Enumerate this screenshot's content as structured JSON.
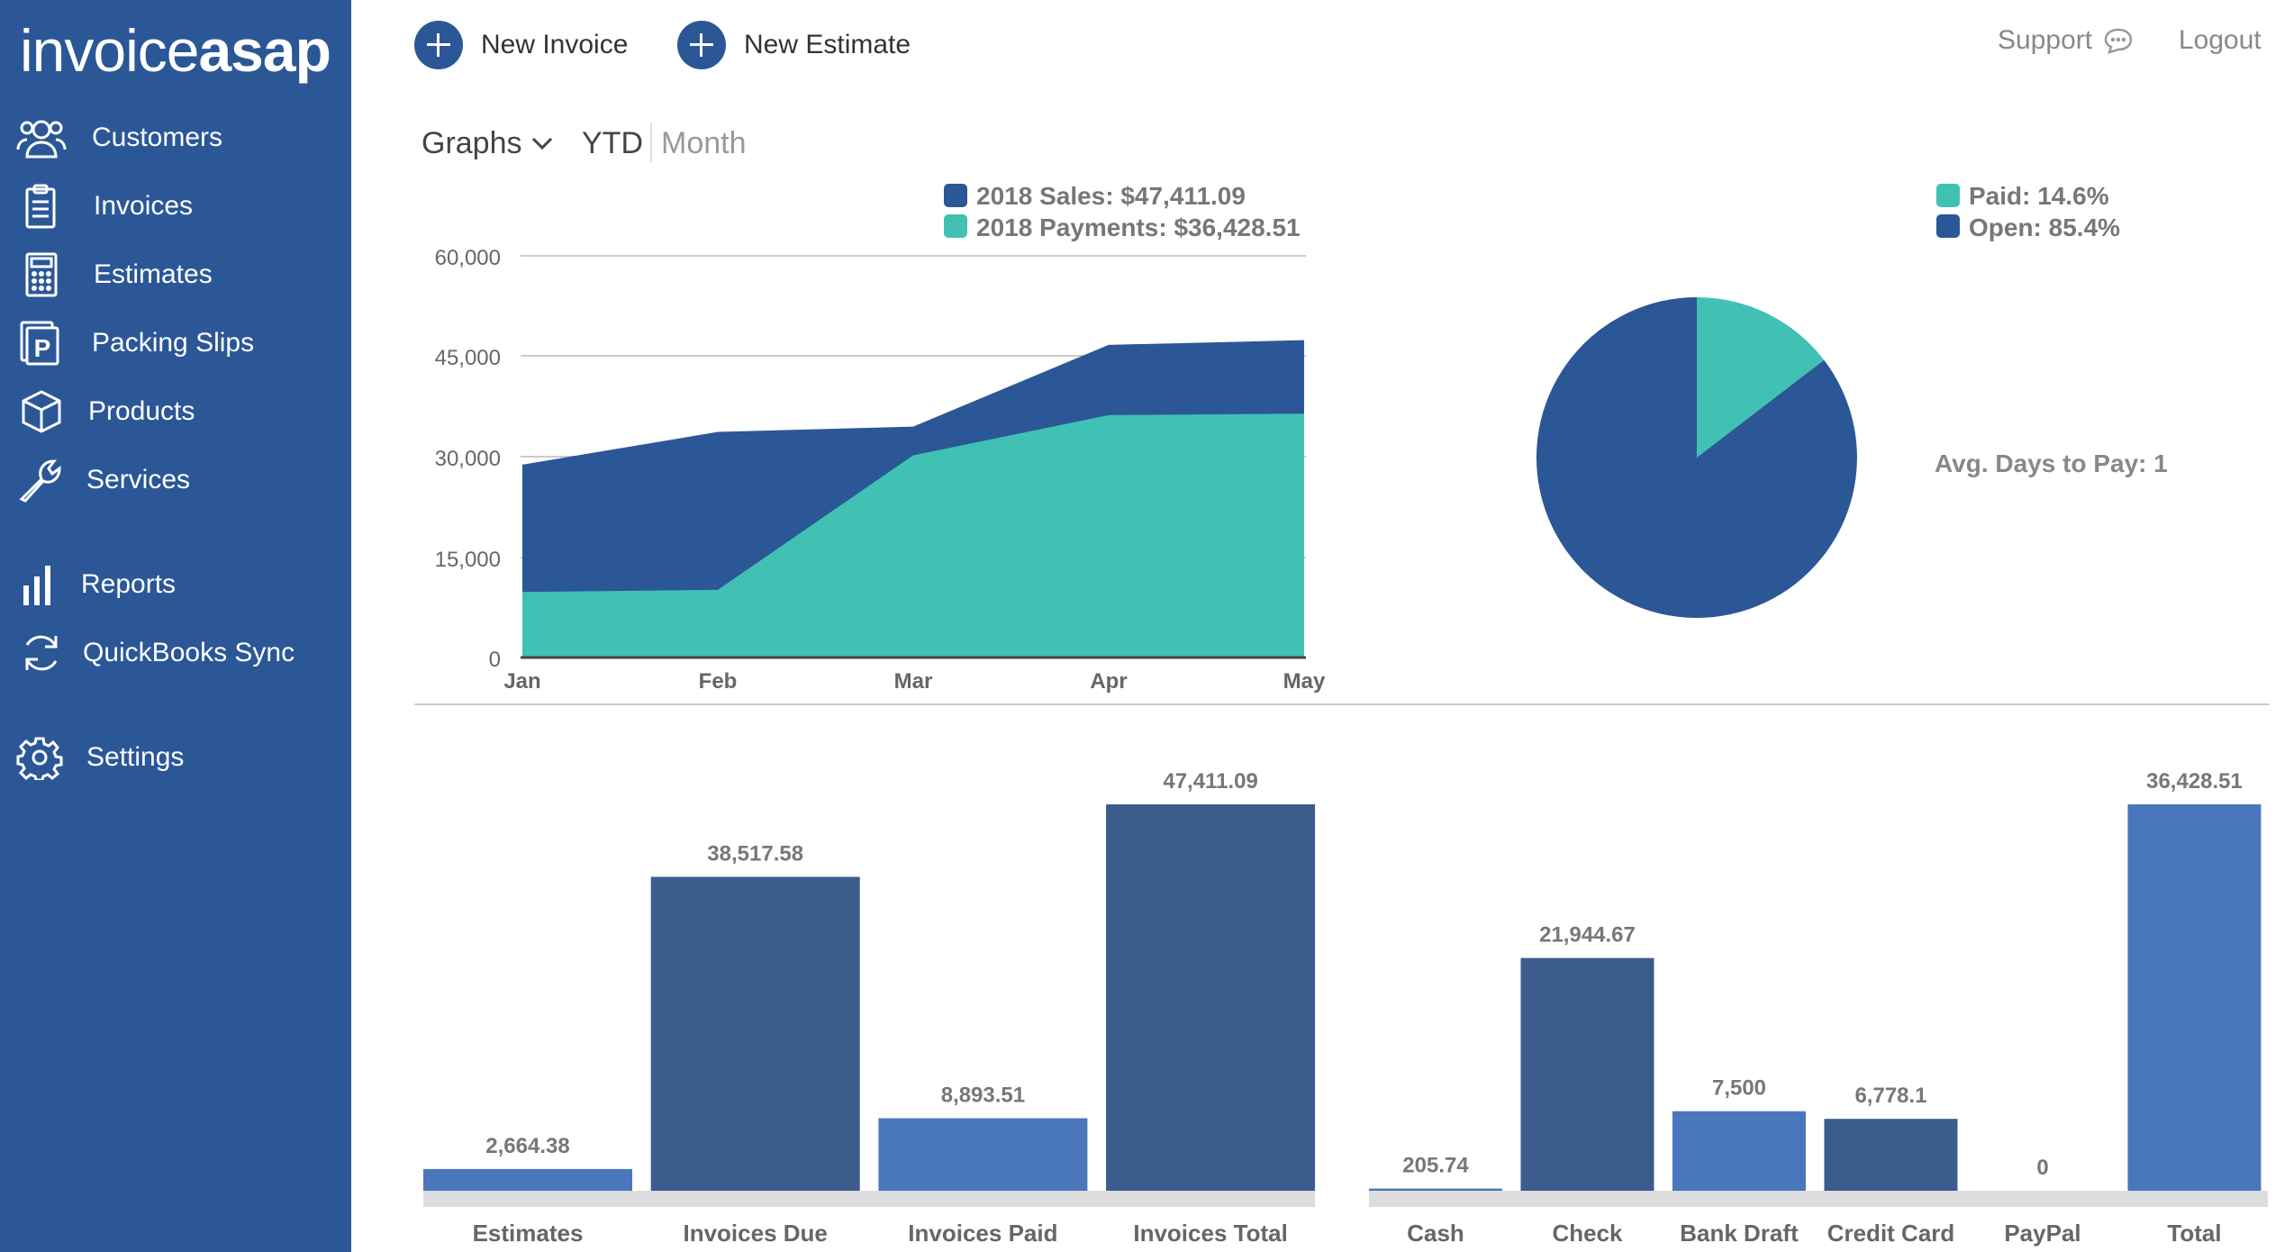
{
  "app": {
    "logo_light": "invoice",
    "logo_bold": "asap"
  },
  "sidebar": {
    "items": [
      {
        "label": "Customers",
        "icon": "customers-icon"
      },
      {
        "label": "Invoices",
        "icon": "invoices-icon"
      },
      {
        "label": "Estimates",
        "icon": "calculator-icon"
      },
      {
        "label": "Packing Slips",
        "icon": "packing-slip-icon"
      },
      {
        "label": "Products",
        "icon": "box-icon"
      },
      {
        "label": "Services",
        "icon": "wrench-icon"
      },
      {
        "label": "Reports",
        "icon": "bar-chart-icon"
      },
      {
        "label": "QuickBooks Sync",
        "icon": "sync-icon"
      },
      {
        "label": "Settings",
        "icon": "gear-icon"
      }
    ]
  },
  "topbar": {
    "new_invoice": "New Invoice",
    "new_estimate": "New Estimate",
    "support": "Support",
    "logout": "Logout"
  },
  "view": {
    "graphs_label": "Graphs",
    "ytd": "YTD",
    "month": "Month"
  },
  "colors": {
    "sidebar": "#2b5797",
    "dark_blue": "#2b5797",
    "teal": "#40c1b4",
    "bar_dark": "#3b5c8c",
    "bar_light": "#4a77bb"
  },
  "chart_data": [
    {
      "type": "area",
      "categories": [
        "Jan",
        "Feb",
        "Mar",
        "Apr",
        "May"
      ],
      "series": [
        {
          "name": "2018 Sales",
          "values": [
            28800,
            33700,
            34500,
            46700,
            47411.09
          ],
          "color": "#2b5797"
        },
        {
          "name": "2018 Payments",
          "values": [
            9800,
            10100,
            30200,
            36200,
            36428.51
          ],
          "color": "#40c1b4"
        }
      ],
      "legend": [
        "2018 Sales: $47,411.09",
        "2018 Payments: $36,428.51"
      ],
      "yticks": [
        "0",
        "15,000",
        "30,000",
        "45,000",
        "60,000"
      ],
      "ylim": [
        0,
        60000
      ]
    },
    {
      "type": "pie",
      "slices": [
        {
          "name": "Paid",
          "value": 14.6,
          "color": "#40c1b4"
        },
        {
          "name": "Open",
          "value": 85.4,
          "color": "#2b5797"
        }
      ],
      "legend": [
        "Paid: 14.6%",
        "Open: 85.4%"
      ],
      "annotation": "Avg. Days to Pay: 1"
    },
    {
      "type": "bar",
      "categories": [
        "Estimates",
        "Invoices Due",
        "Invoices Paid",
        "Invoices Total"
      ],
      "values": [
        2664.38,
        38517.58,
        8893.51,
        47411.09
      ],
      "labels": [
        "2,664.38",
        "38,517.58",
        "8,893.51",
        "47,411.09"
      ],
      "colors": [
        "#4a77bb",
        "#3b5c8c",
        "#4a77bb",
        "#3b5c8c"
      ]
    },
    {
      "type": "bar",
      "categories": [
        "Cash",
        "Check",
        "Bank Draft",
        "Credit Card",
        "PayPal",
        "Total"
      ],
      "values": [
        205.74,
        21944.67,
        7500,
        6778.1,
        0,
        36428.51
      ],
      "labels": [
        "205.74",
        "21,944.67",
        "7,500",
        "6,778.1",
        "0",
        "36,428.51"
      ],
      "colors": [
        "#4a77bb",
        "#3b5c8c",
        "#4a77bb",
        "#3b5c8c",
        "#4a77bb",
        "#4a77bb"
      ]
    }
  ]
}
